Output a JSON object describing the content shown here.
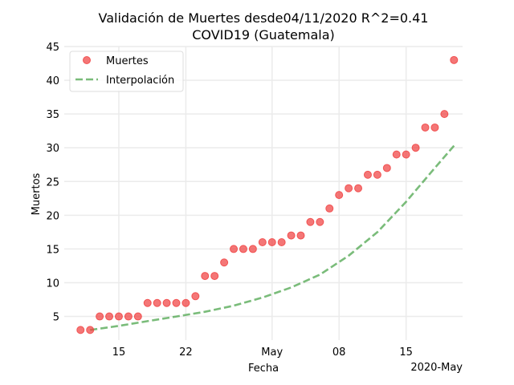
{
  "chart_data": {
    "type": "scatter",
    "title_line1": "Validación de Muertes desde04/11/2020 R^2=0.41",
    "title_line2": "COVID19 (Guatemala)",
    "xlabel": "Fecha",
    "ylabel": "Muertos",
    "x_offset_label": "2020-May",
    "xlim": [
      "2020-04-10",
      "2020-05-20"
    ],
    "ylim": [
      1.5,
      45
    ],
    "yticks": [
      5,
      10,
      15,
      20,
      25,
      30,
      35,
      40,
      45
    ],
    "xticks": [
      {
        "date": "2020-04-15",
        "label": "15"
      },
      {
        "date": "2020-04-22",
        "label": "22"
      },
      {
        "date": "2020-05-01",
        "label": "May"
      },
      {
        "date": "2020-05-08",
        "label": "08"
      },
      {
        "date": "2020-05-15",
        "label": "15"
      }
    ],
    "grid": true,
    "legend_position": "top-left",
    "series": [
      {
        "name": "Muertes",
        "kind": "scatter",
        "color": "#f03c3c",
        "points": [
          {
            "x": "2020-04-11",
            "y": 3
          },
          {
            "x": "2020-04-12",
            "y": 3
          },
          {
            "x": "2020-04-13",
            "y": 5
          },
          {
            "x": "2020-04-14",
            "y": 5
          },
          {
            "x": "2020-04-15",
            "y": 5
          },
          {
            "x": "2020-04-16",
            "y": 5
          },
          {
            "x": "2020-04-17",
            "y": 5
          },
          {
            "x": "2020-04-18",
            "y": 7
          },
          {
            "x": "2020-04-19",
            "y": 7
          },
          {
            "x": "2020-04-20",
            "y": 7
          },
          {
            "x": "2020-04-21",
            "y": 7
          },
          {
            "x": "2020-04-22",
            "y": 7
          },
          {
            "x": "2020-04-23",
            "y": 8
          },
          {
            "x": "2020-04-24",
            "y": 11
          },
          {
            "x": "2020-04-25",
            "y": 11
          },
          {
            "x": "2020-04-26",
            "y": 13
          },
          {
            "x": "2020-04-27",
            "y": 15
          },
          {
            "x": "2020-04-28",
            "y": 15
          },
          {
            "x": "2020-04-29",
            "y": 15
          },
          {
            "x": "2020-04-30",
            "y": 16
          },
          {
            "x": "2020-05-01",
            "y": 16
          },
          {
            "x": "2020-05-02",
            "y": 16
          },
          {
            "x": "2020-05-03",
            "y": 17
          },
          {
            "x": "2020-05-04",
            "y": 17
          },
          {
            "x": "2020-05-05",
            "y": 19
          },
          {
            "x": "2020-05-06",
            "y": 19
          },
          {
            "x": "2020-05-07",
            "y": 21
          },
          {
            "x": "2020-05-08",
            "y": 23
          },
          {
            "x": "2020-05-09",
            "y": 24
          },
          {
            "x": "2020-05-10",
            "y": 24
          },
          {
            "x": "2020-05-11",
            "y": 26
          },
          {
            "x": "2020-05-12",
            "y": 26
          },
          {
            "x": "2020-05-13",
            "y": 27
          },
          {
            "x": "2020-05-14",
            "y": 29
          },
          {
            "x": "2020-05-15",
            "y": 29
          },
          {
            "x": "2020-05-16",
            "y": 30
          },
          {
            "x": "2020-05-17",
            "y": 33
          },
          {
            "x": "2020-05-18",
            "y": 33
          },
          {
            "x": "2020-05-19",
            "y": 35
          },
          {
            "x": "2020-05-20",
            "y": 43
          }
        ]
      },
      {
        "name": "Interpolación",
        "kind": "line",
        "style": "dashed",
        "color": "#4ea64e",
        "points": [
          {
            "x": "2020-04-12",
            "y": 3.0
          },
          {
            "x": "2020-04-15",
            "y": 3.6
          },
          {
            "x": "2020-04-18",
            "y": 4.3
          },
          {
            "x": "2020-04-21",
            "y": 5.0
          },
          {
            "x": "2020-04-24",
            "y": 5.7
          },
          {
            "x": "2020-04-27",
            "y": 6.6
          },
          {
            "x": "2020-04-30",
            "y": 7.8
          },
          {
            "x": "2020-05-03",
            "y": 9.3
          },
          {
            "x": "2020-05-06",
            "y": 11.2
          },
          {
            "x": "2020-05-09",
            "y": 14.0
          },
          {
            "x": "2020-05-12",
            "y": 17.5
          },
          {
            "x": "2020-05-15",
            "y": 22.0
          },
          {
            "x": "2020-05-18",
            "y": 27.0
          },
          {
            "x": "2020-05-20",
            "y": 30.3
          }
        ]
      }
    ]
  }
}
